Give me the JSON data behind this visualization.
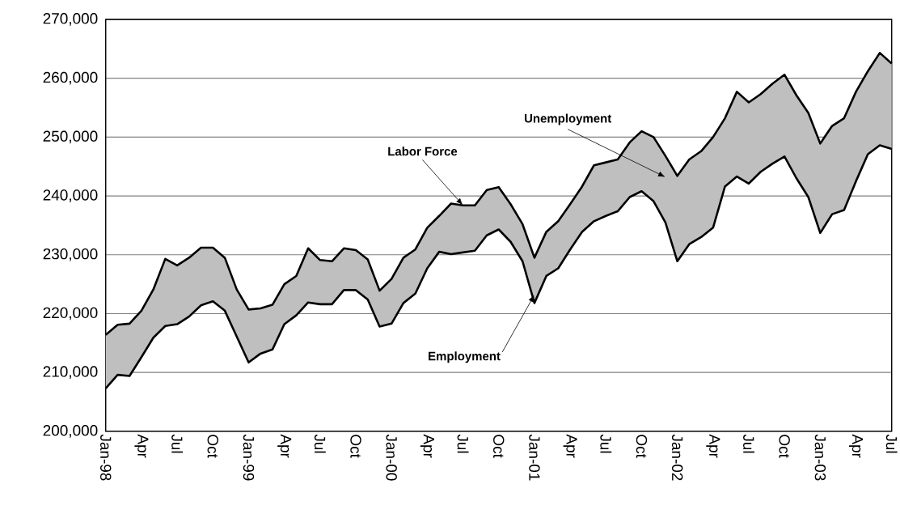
{
  "chart_data": {
    "type": "line",
    "grid": "y",
    "x": [
      "1998-01",
      "1998-02",
      "1998-03",
      "1998-04",
      "1998-05",
      "1998-06",
      "1998-07",
      "1998-08",
      "1998-09",
      "1998-10",
      "1998-11",
      "1998-12",
      "1999-01",
      "1999-02",
      "1999-03",
      "1999-04",
      "1999-05",
      "1999-06",
      "1999-07",
      "1999-08",
      "1999-09",
      "1999-10",
      "1999-11",
      "1999-12",
      "2000-01",
      "2000-02",
      "2000-03",
      "2000-04",
      "2000-05",
      "2000-06",
      "2000-07",
      "2000-08",
      "2000-09",
      "2000-10",
      "2000-11",
      "2000-12",
      "2001-01",
      "2001-02",
      "2001-03",
      "2001-04",
      "2001-05",
      "2001-06",
      "2001-07",
      "2001-08",
      "2001-09",
      "2001-10",
      "2001-11",
      "2001-12",
      "2002-01",
      "2002-02",
      "2002-03",
      "2002-04",
      "2002-05",
      "2002-06",
      "2002-07",
      "2002-08",
      "2002-09",
      "2002-10",
      "2002-11",
      "2002-12",
      "2003-01",
      "2003-02",
      "2003-03",
      "2003-04",
      "2003-05",
      "2003-06",
      "2003-07"
    ],
    "series": [
      {
        "color": "#000000",
        "values": [
          207300,
          209600,
          209400,
          212600,
          215900,
          217900,
          218200,
          219500,
          221400,
          222100,
          220500,
          216100,
          211700,
          213200,
          213900,
          218200,
          219700,
          221900,
          221600,
          221600,
          224000,
          224000,
          222400,
          217800,
          218300,
          221800,
          223400,
          227700,
          230500,
          230100,
          230400,
          230700,
          233300,
          234300,
          232200,
          228900,
          221800,
          226400,
          227700,
          230900,
          233900,
          235700,
          236600,
          237400,
          239800,
          240800,
          239100,
          235500,
          228900,
          231800,
          233000,
          234600,
          241600,
          243300,
          242100,
          244100,
          245500,
          246700,
          243000,
          239800,
          233700,
          236900,
          237600,
          242500,
          247100,
          248600,
          248000
        ]
      },
      {
        "color": "#000000",
        "values": [
          216400,
          218100,
          218300,
          220500,
          224100,
          229300,
          228200,
          229500,
          231200,
          231200,
          229500,
          224100,
          220700,
          220900,
          221500,
          225000,
          226400,
          231100,
          229100,
          228900,
          231100,
          230800,
          229200,
          223900,
          225900,
          229500,
          230900,
          234600,
          236600,
          238700,
          238400,
          238400,
          241000,
          241500,
          238600,
          235200,
          229500,
          233900,
          235700,
          238600,
          241600,
          245200,
          245700,
          246200,
          249100,
          251000,
          250000,
          246800,
          243400,
          246200,
          247600,
          250000,
          253200,
          257700,
          255900,
          257300,
          259100,
          260600,
          257100,
          254100,
          248900,
          251900,
          253200,
          257700,
          261200,
          264300,
          262500
        ],
        "lower": [
          207300,
          209600,
          209400,
          212600,
          215900,
          217900,
          218200,
          219500,
          221400,
          222100,
          220500,
          216100,
          211700,
          213200,
          213900,
          218200,
          219700,
          221900,
          221600,
          221600,
          224000,
          224000,
          222400,
          217800,
          218300,
          221800,
          223400,
          227700,
          230500,
          230100,
          230400,
          230700,
          233300,
          234300,
          232200,
          228900,
          221800,
          226400,
          227700,
          230900,
          233900,
          235700,
          236600,
          237400,
          239800,
          240800,
          239100,
          235500,
          228900,
          231800,
          233000,
          234600,
          241600,
          243300,
          242100,
          244100,
          245500,
          246700,
          243000,
          239800,
          233700,
          236900,
          237600,
          242500,
          247100,
          248600,
          248000
        ],
        "upper": [
          216400,
          218100,
          218300,
          220500,
          224100,
          229300,
          228200,
          229500,
          231200,
          231200,
          229500,
          224100,
          220700,
          220900,
          221500,
          225000,
          226400,
          231100,
          229100,
          228900,
          231100,
          230800,
          229200,
          223900,
          225900,
          229500,
          230900,
          234600,
          236600,
          238700,
          238400,
          238400,
          241000,
          241500,
          238600,
          235200,
          229500,
          233900,
          235700,
          238600,
          241600,
          245200,
          245700,
          246200,
          249100,
          251000,
          250000,
          246800,
          243400,
          246200,
          247600,
          250000,
          253200,
          257700,
          255900,
          257300,
          259100,
          260600,
          257100,
          254100,
          248900,
          251900,
          253200,
          257700,
          261200,
          264300,
          262500
        ]
      }
    ],
    "xlim": [
      "1998-01",
      "2003-07"
    ],
    "xticks": [
      {
        "value": "1998-01",
        "label": "Jan-98"
      },
      {
        "value": "1998-04",
        "label": "Apr"
      },
      {
        "value": "1998-07",
        "label": "Jul"
      },
      {
        "value": "1998-10",
        "label": "Oct"
      },
      {
        "value": "1999-01",
        "label": "Jan-99"
      },
      {
        "value": "1999-04",
        "label": "Apr"
      },
      {
        "value": "1999-07",
        "label": "Jul"
      },
      {
        "value": "1999-10",
        "label": "Oct"
      },
      {
        "value": "2000-01",
        "label": "Jan-00"
      },
      {
        "value": "2000-04",
        "label": "Apr"
      },
      {
        "value": "2000-07",
        "label": "Jul"
      },
      {
        "value": "2000-10",
        "label": "Oct"
      },
      {
        "value": "2001-01",
        "label": "Jan-01"
      },
      {
        "value": "2001-04",
        "label": "Apr"
      },
      {
        "value": "2001-07",
        "label": "Jul"
      },
      {
        "value": "2001-10",
        "label": "Oct"
      },
      {
        "value": "2002-01",
        "label": "Jan-02"
      },
      {
        "value": "2002-04",
        "label": "Apr"
      },
      {
        "value": "2002-07",
        "label": "Jul"
      },
      {
        "value": "2002-10",
        "label": "Oct"
      },
      {
        "value": "2003-01",
        "label": "Jan-03"
      },
      {
        "value": "2003-04",
        "label": "Apr"
      },
      {
        "value": "2003-07",
        "label": "Jul"
      }
    ],
    "ylim": [
      200000,
      270000
    ],
    "yticks": [
      {
        "value": 200000,
        "label": "200,000"
      },
      {
        "value": 210000,
        "label": "210,000"
      },
      {
        "value": 220000,
        "label": "220,000"
      },
      {
        "value": 230000,
        "label": "230,000"
      },
      {
        "value": 240000,
        "label": "240,000"
      },
      {
        "value": 250000,
        "label": "250,000"
      },
      {
        "value": 260000,
        "label": "260,000"
      },
      {
        "value": 270000,
        "label": "270,000"
      }
    ],
    "annotations": [
      {
        "text": "Labor Force",
        "x": "2000-07",
        "y": 238400
      },
      "Unemployment",
      {
        "text": "Employment",
        "x": "2001-01",
        "y": 223200
      }
    ]
  }
}
